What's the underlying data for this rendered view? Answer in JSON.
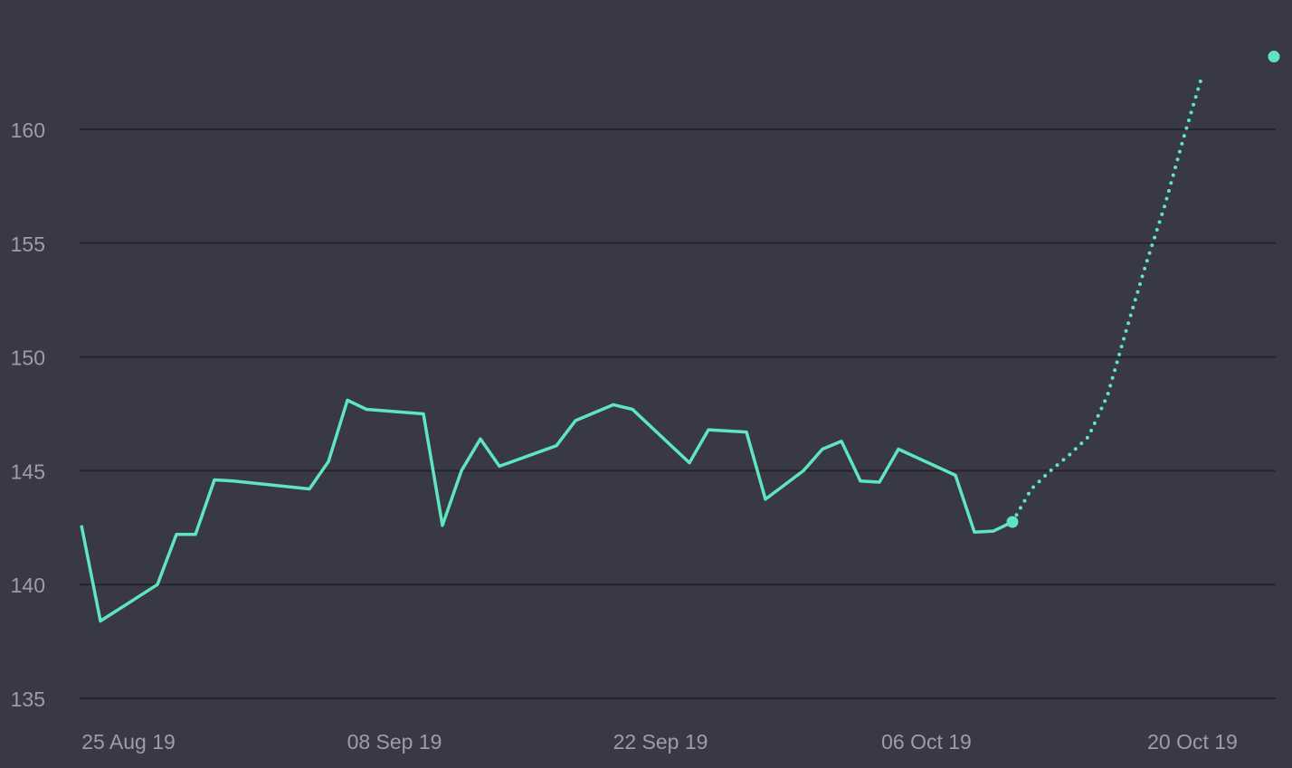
{
  "chart_data": {
    "type": "line",
    "title": "",
    "xlabel": "",
    "ylabel": "",
    "x_range": [
      "2019-08-23",
      "2019-10-23"
    ],
    "ylim": [
      135,
      162.5
    ],
    "y_ticks": [
      135,
      140,
      145,
      150,
      155,
      160
    ],
    "y_tick_labels": [
      "135",
      "140",
      "145",
      "150",
      "155",
      "160"
    ],
    "x_ticks": [
      "2019-08-25",
      "2019-09-08",
      "2019-09-22",
      "2019-10-06",
      "2019-10-20"
    ],
    "x_tick_labels": [
      "25 Aug 19",
      "08 Sep 19",
      "22 Sep 19",
      "06 Oct 19",
      "20 Oct 19"
    ],
    "grid": true,
    "legend": "none",
    "colors": {
      "background": "#393945",
      "grid": "#24242c",
      "tick_text": "#9c9cab",
      "series": "#5ee6c0"
    },
    "series": [
      {
        "style": "solid",
        "points": [
          {
            "x": "2019-08-23",
            "y": 142.6
          },
          {
            "x": "2019-08-24",
            "y": 138.4
          },
          {
            "x": "2019-08-27",
            "y": 140.0
          },
          {
            "x": "2019-08-28",
            "y": 142.2
          },
          {
            "x": "2019-08-29",
            "y": 142.2
          },
          {
            "x": "2019-08-30",
            "y": 144.6
          },
          {
            "x": "2019-08-31",
            "y": 144.55
          },
          {
            "x": "2019-09-04",
            "y": 144.2
          },
          {
            "x": "2019-09-05",
            "y": 145.4
          },
          {
            "x": "2019-09-06",
            "y": 148.1
          },
          {
            "x": "2019-09-07",
            "y": 147.7
          },
          {
            "x": "2019-09-10",
            "y": 147.5
          },
          {
            "x": "2019-09-11",
            "y": 142.6
          },
          {
            "x": "2019-09-12",
            "y": 145.0
          },
          {
            "x": "2019-09-13",
            "y": 146.4
          },
          {
            "x": "2019-09-14",
            "y": 145.2
          },
          {
            "x": "2019-09-17",
            "y": 146.1
          },
          {
            "x": "2019-09-18",
            "y": 147.2
          },
          {
            "x": "2019-09-20",
            "y": 147.9
          },
          {
            "x": "2019-09-21",
            "y": 147.7
          },
          {
            "x": "2019-09-24",
            "y": 145.35
          },
          {
            "x": "2019-09-25",
            "y": 146.8
          },
          {
            "x": "2019-09-26",
            "y": 146.75
          },
          {
            "x": "2019-09-27",
            "y": 146.7
          },
          {
            "x": "2019-09-28",
            "y": 143.75
          },
          {
            "x": "2019-09-30",
            "y": 145.0
          },
          {
            "x": "2019-10-01",
            "y": 145.95
          },
          {
            "x": "2019-10-02",
            "y": 146.3
          },
          {
            "x": "2019-10-03",
            "y": 144.55
          },
          {
            "x": "2019-10-04",
            "y": 144.5
          },
          {
            "x": "2019-10-05",
            "y": 145.95
          },
          {
            "x": "2019-10-08",
            "y": 144.8
          },
          {
            "x": "2019-10-09",
            "y": 142.3
          },
          {
            "x": "2019-10-10",
            "y": 142.35
          },
          {
            "x": "2019-10-11",
            "y": 142.75
          }
        ]
      },
      {
        "style": "dotted",
        "points": [
          {
            "x": "2019-10-11",
            "y": 142.75
          },
          {
            "x": "2019-10-12",
            "y": 144.2
          },
          {
            "x": "2019-10-13",
            "y": 145.0
          },
          {
            "x": "2019-10-14",
            "y": 145.7
          },
          {
            "x": "2019-10-15",
            "y": 146.5
          },
          {
            "x": "2019-10-16",
            "y": 148.3
          },
          {
            "x": "2019-10-17",
            "y": 151.2
          },
          {
            "x": "2019-10-18",
            "y": 154.0
          },
          {
            "x": "2019-10-19",
            "y": 156.6
          },
          {
            "x": "2019-10-20",
            "y": 159.6
          },
          {
            "x": "2019-10-21",
            "y": 162.4
          }
        ]
      }
    ],
    "endpoint_markers": [
      {
        "x": "2019-10-11",
        "y": 142.75
      },
      {
        "x": "2019-10-25",
        "y": 163.2
      }
    ]
  }
}
